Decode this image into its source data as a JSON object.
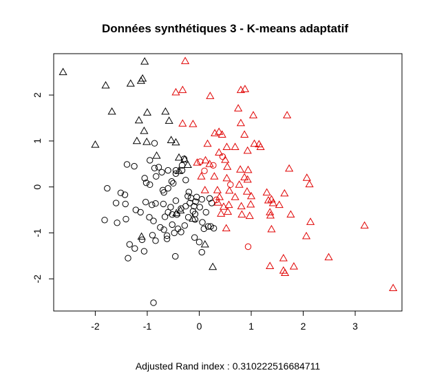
{
  "chart_data": {
    "type": "scatter",
    "title": "Données synthétiques 3 - K-means adaptatif",
    "xlabel": "Adjusted Rand index : 0.310222516684711",
    "ylabel": "",
    "xlim": [
      -2.8,
      3.9
    ],
    "ylim": [
      -2.7,
      2.9
    ],
    "x_ticks": [
      -2,
      -1,
      0,
      1,
      2,
      3
    ],
    "y_ticks": [
      -2,
      -1,
      0,
      1,
      2
    ],
    "grid": false,
    "colors": {
      "black": "#000000",
      "red": "#e00000"
    },
    "series": [
      {
        "color": "black",
        "marker": "circle",
        "points": [
          [
            -1.39,
            0.49
          ],
          [
            -1.25,
            0.45
          ],
          [
            -1.05,
            0.19
          ],
          [
            -0.95,
            0.58
          ],
          [
            -0.86,
            0.95
          ],
          [
            -0.86,
            0.41
          ],
          [
            -0.78,
            0.43
          ],
          [
            -0.72,
            0.32
          ],
          [
            -0.6,
            0.36
          ],
          [
            -0.45,
            0.36
          ],
          [
            -0.33,
            0.36
          ],
          [
            -1.77,
            -0.03
          ],
          [
            -1.51,
            -0.13
          ],
          [
            -1.43,
            -0.17
          ],
          [
            -1.02,
            0.09
          ],
          [
            -0.95,
            0.05
          ],
          [
            -0.83,
            0.23
          ],
          [
            -0.7,
            -0.07
          ],
          [
            -0.68,
            -0.12
          ],
          [
            -0.6,
            -0.03
          ],
          [
            -0.53,
            0.12
          ],
          [
            -0.45,
            0.29
          ],
          [
            -0.26,
            0.15
          ],
          [
            -0.22,
            -0.2
          ],
          [
            -0.16,
            -0.24
          ],
          [
            -0.07,
            -0.32
          ],
          [
            0.05,
            -0.27
          ],
          [
            0.2,
            -0.25
          ],
          [
            -1.6,
            -0.35
          ],
          [
            -1.42,
            -0.37
          ],
          [
            -1.22,
            -0.5
          ],
          [
            -1.03,
            -0.33
          ],
          [
            -0.91,
            -0.39
          ],
          [
            -0.84,
            -0.36
          ],
          [
            -0.69,
            -0.37
          ],
          [
            -0.6,
            -0.55
          ],
          [
            -0.52,
            -0.6
          ],
          [
            -0.43,
            -0.6
          ],
          [
            -0.35,
            -0.47
          ],
          [
            -0.26,
            -0.42
          ],
          [
            -0.18,
            -0.35
          ],
          [
            -0.1,
            -0.42
          ],
          [
            0.01,
            -0.44
          ],
          [
            0.13,
            -0.55
          ],
          [
            0.24,
            -0.35
          ],
          [
            -1.82,
            -0.72
          ],
          [
            -1.58,
            -0.78
          ],
          [
            -1.41,
            -0.7
          ],
          [
            -1.13,
            -0.55
          ],
          [
            -0.96,
            -0.66
          ],
          [
            -0.88,
            -0.74
          ],
          [
            -0.75,
            -0.88
          ],
          [
            -0.66,
            -0.65
          ],
          [
            -0.52,
            -0.82
          ],
          [
            -0.41,
            -0.91
          ],
          [
            -0.28,
            -0.84
          ],
          [
            -0.21,
            -0.66
          ],
          [
            -0.08,
            -0.59
          ],
          [
            0.06,
            -0.77
          ],
          [
            0.17,
            -0.86
          ],
          [
            0.28,
            -0.9
          ],
          [
            -1.34,
            -1.25
          ],
          [
            -1.24,
            -1.34
          ],
          [
            -1.1,
            -1.15
          ],
          [
            -0.9,
            -1.05
          ],
          [
            -0.68,
            -0.93
          ],
          [
            -0.62,
            -1.06
          ],
          [
            -0.48,
            -1.0
          ],
          [
            -0.35,
            -0.98
          ],
          [
            -0.09,
            -1.1
          ],
          [
            0.09,
            -0.91
          ],
          [
            0.22,
            -0.86
          ],
          [
            -1.37,
            -1.55
          ],
          [
            -1.06,
            -1.4
          ],
          [
            -0.84,
            -1.17
          ],
          [
            -0.62,
            -1.13
          ],
          [
            -0.46,
            -1.51
          ],
          [
            0.05,
            -1.42
          ],
          [
            -0.88,
            -2.52
          ],
          [
            -0.33,
            0.47
          ],
          [
            -0.29,
            0.61
          ],
          [
            -0.5,
            0.08
          ],
          [
            -0.45,
            -0.3
          ],
          [
            -0.05,
            -0.22
          ],
          [
            -0.12,
            -0.53
          ],
          [
            -0.2,
            -0.11
          ],
          [
            -0.55,
            -0.44
          ],
          [
            0.0,
            -1.2
          ],
          [
            -0.08,
            -0.71
          ]
        ]
      },
      {
        "color": "black",
        "marker": "triangle",
        "points": [
          [
            -2.62,
            2.5
          ],
          [
            -1.05,
            2.73
          ],
          [
            -1.8,
            2.21
          ],
          [
            -1.32,
            2.25
          ],
          [
            -1.12,
            2.31
          ],
          [
            -1.09,
            2.36
          ],
          [
            -1.68,
            1.64
          ],
          [
            -1.0,
            1.62
          ],
          [
            -0.65,
            1.64
          ],
          [
            -1.16,
            1.45
          ],
          [
            -0.58,
            1.44
          ],
          [
            -1.06,
            1.22
          ],
          [
            -1.01,
            0.98
          ],
          [
            -0.54,
            1.02
          ],
          [
            -0.45,
            0.97
          ],
          [
            -2.0,
            0.92
          ],
          [
            -1.2,
            1.0
          ],
          [
            -0.82,
            0.68
          ],
          [
            -0.39,
            0.64
          ],
          [
            -0.28,
            0.6
          ],
          [
            -0.22,
            0.48
          ],
          [
            -0.39,
            0.35
          ],
          [
            -0.44,
            -0.57
          ],
          [
            -0.36,
            -0.51
          ],
          [
            -0.12,
            -0.69
          ],
          [
            -1.11,
            -1.08
          ],
          [
            0.11,
            -1.25
          ],
          [
            0.26,
            -1.74
          ]
        ]
      },
      {
        "color": "red",
        "marker": "triangle",
        "points": [
          [
            -0.27,
            2.74
          ],
          [
            -0.32,
            2.11
          ],
          [
            -0.45,
            2.06
          ],
          [
            0.21,
            1.98
          ],
          [
            0.8,
            2.11
          ],
          [
            0.88,
            2.13
          ],
          [
            0.75,
            1.71
          ],
          [
            1.04,
            1.56
          ],
          [
            1.69,
            1.56
          ],
          [
            0.8,
            1.39
          ],
          [
            -0.32,
            1.38
          ],
          [
            -0.12,
            1.37
          ],
          [
            0.3,
            1.17
          ],
          [
            0.38,
            1.2
          ],
          [
            0.44,
            1.14
          ],
          [
            0.87,
            1.14
          ],
          [
            1.06,
            0.94
          ],
          [
            1.15,
            0.93
          ],
          [
            1.18,
            0.87
          ],
          [
            0.16,
            0.94
          ],
          [
            0.53,
            0.87
          ],
          [
            0.69,
            0.87
          ],
          [
            0.38,
            0.75
          ],
          [
            0.93,
            0.79
          ],
          [
            0.12,
            0.58
          ],
          [
            0.5,
            0.59
          ],
          [
            -0.04,
            0.53
          ],
          [
            0.2,
            0.5
          ],
          [
            0.54,
            0.44
          ],
          [
            0.79,
            0.38
          ],
          [
            0.94,
            0.37
          ],
          [
            1.73,
            0.4
          ],
          [
            2.07,
            0.2
          ],
          [
            2.12,
            0.06
          ],
          [
            0.04,
            0.23
          ],
          [
            0.29,
            0.23
          ],
          [
            0.53,
            0.19
          ],
          [
            0.87,
            0.21
          ],
          [
            0.93,
            0.16
          ],
          [
            0.77,
            0.05
          ],
          [
            0.11,
            -0.07
          ],
          [
            0.35,
            -0.07
          ],
          [
            0.58,
            -0.08
          ],
          [
            0.92,
            -0.1
          ],
          [
            1.3,
            -0.12
          ],
          [
            1.64,
            -0.14
          ],
          [
            0.39,
            -0.22
          ],
          [
            0.69,
            -0.22
          ],
          [
            1.0,
            -0.2
          ],
          [
            1.33,
            -0.29
          ],
          [
            1.39,
            -0.27
          ],
          [
            1.42,
            -0.35
          ],
          [
            1.54,
            -0.39
          ],
          [
            0.36,
            -0.34
          ],
          [
            0.47,
            -0.43
          ],
          [
            0.57,
            -0.39
          ],
          [
            0.81,
            -0.42
          ],
          [
            0.99,
            -0.38
          ],
          [
            0.42,
            -0.58
          ],
          [
            0.55,
            -0.54
          ],
          [
            0.82,
            -0.6
          ],
          [
            0.97,
            -0.63
          ],
          [
            1.36,
            -0.55
          ],
          [
            1.37,
            -0.62
          ],
          [
            1.76,
            -0.6
          ],
          [
            2.14,
            -0.76
          ],
          [
            3.18,
            -0.84
          ],
          [
            0.52,
            -0.9
          ],
          [
            1.39,
            -0.92
          ],
          [
            2.06,
            -1.07
          ],
          [
            1.62,
            -1.55
          ],
          [
            2.49,
            -1.53
          ],
          [
            1.36,
            -1.72
          ],
          [
            1.82,
            -1.73
          ],
          [
            1.62,
            -1.82
          ],
          [
            1.65,
            -1.87
          ],
          [
            3.73,
            -2.2
          ]
        ]
      },
      {
        "color": "red",
        "marker": "circle",
        "points": [
          [
            0.02,
            0.55
          ],
          [
            0.27,
            0.47
          ],
          [
            0.45,
            0.66
          ],
          [
            0.1,
            0.35
          ],
          [
            0.94,
            -1.3
          ],
          [
            0.33,
            -0.28
          ],
          [
            0.6,
            0.05
          ]
        ]
      }
    ]
  }
}
